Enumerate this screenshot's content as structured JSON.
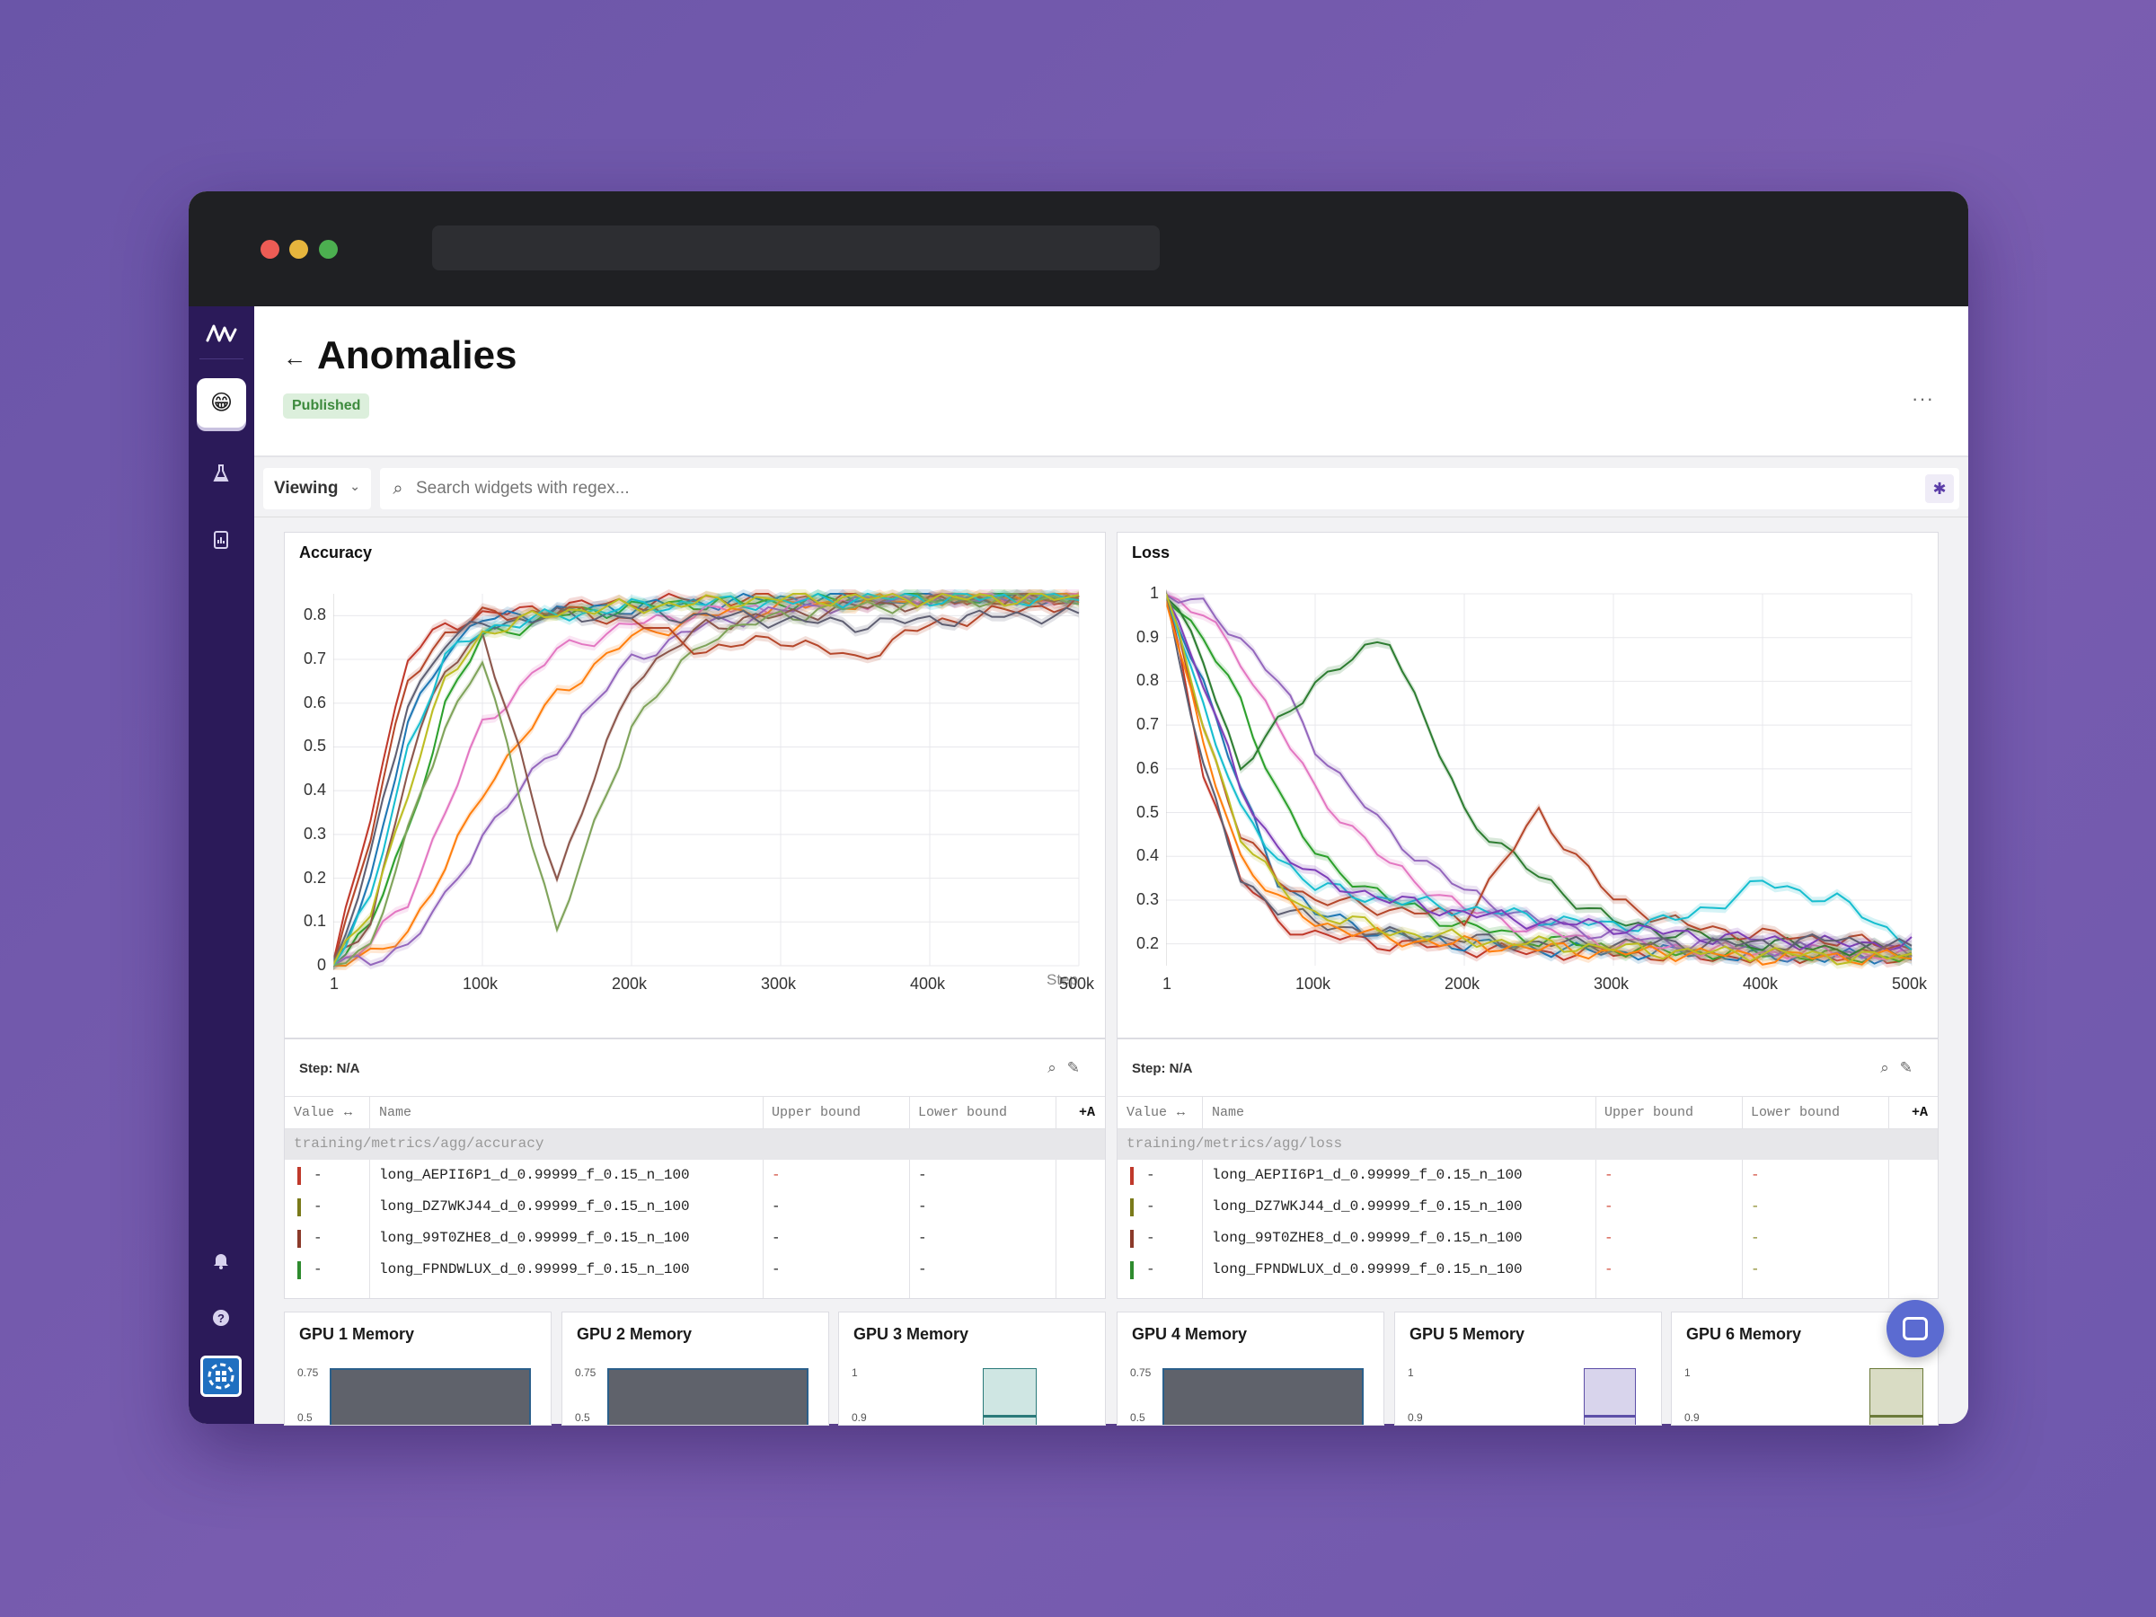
{
  "page": {
    "title": "Anomalies",
    "status_badge": "Published",
    "more_label": "···"
  },
  "toolbar": {
    "view_mode": "Viewing",
    "search_placeholder": "Search widgets with regex..."
  },
  "sidebar": {
    "avatar": "😁",
    "items": [
      {
        "icon": "flask-icon"
      },
      {
        "icon": "report-icon"
      },
      {
        "icon": "bell-icon"
      },
      {
        "icon": "help-icon"
      }
    ]
  },
  "charts": {
    "accuracy": {
      "title": "Accuracy",
      "x_ticks": [
        "1",
        "100k",
        "200k",
        "300k",
        "400k",
        "500k"
      ],
      "y_ticks": [
        "0",
        "0.1",
        "0.2",
        "0.3",
        "0.4",
        "0.5",
        "0.6",
        "0.7",
        "0.8"
      ],
      "x_label": "Step"
    },
    "loss": {
      "title": "Loss",
      "x_ticks": [
        "1",
        "100k",
        "200k",
        "300k",
        "400k",
        "500k"
      ],
      "y_ticks": [
        "0.2",
        "0.3",
        "0.4",
        "0.5",
        "0.6",
        "0.7",
        "0.8",
        "0.9",
        "1"
      ]
    }
  },
  "chart_data": [
    {
      "type": "line",
      "title": "Accuracy",
      "xlabel": "Step",
      "xlim": [
        1,
        500000
      ],
      "ylim": [
        0,
        0.85
      ],
      "x": [
        1,
        25000,
        50000,
        75000,
        100000,
        150000,
        200000,
        250000,
        300000,
        350000,
        400000,
        450000,
        500000
      ],
      "series": [
        {
          "values": [
            0,
            0.35,
            0.7,
            0.78,
            0.8,
            0.82,
            0.83,
            0.84,
            0.84,
            0.84,
            0.84,
            0.84,
            0.84
          ],
          "color": "#c0392b"
        },
        {
          "values": [
            0,
            0.2,
            0.55,
            0.72,
            0.79,
            0.81,
            0.82,
            0.83,
            0.84,
            0.84,
            0.84,
            0.84,
            0.84
          ],
          "color": "#1f77b4"
        },
        {
          "values": [
            0,
            0.1,
            0.3,
            0.6,
            0.75,
            0.8,
            0.82,
            0.83,
            0.83,
            0.84,
            0.84,
            0.84,
            0.84
          ],
          "color": "#2ca02c"
        },
        {
          "values": [
            0,
            0.05,
            0.15,
            0.35,
            0.55,
            0.72,
            0.78,
            0.81,
            0.82,
            0.83,
            0.84,
            0.84,
            0.84
          ],
          "color": "#e377c2"
        },
        {
          "values": [
            0,
            0.02,
            0.08,
            0.22,
            0.4,
            0.62,
            0.75,
            0.8,
            0.82,
            0.83,
            0.84,
            0.84,
            0.84
          ],
          "color": "#ff7f0e"
        },
        {
          "values": [
            0,
            0.01,
            0.05,
            0.15,
            0.3,
            0.5,
            0.7,
            0.78,
            0.81,
            0.83,
            0.84,
            0.84,
            0.84
          ],
          "color": "#9467bd"
        },
        {
          "values": [
            0,
            0.1,
            0.45,
            0.68,
            0.76,
            0.2,
            0.65,
            0.78,
            0.8,
            0.82,
            0.83,
            0.84,
            0.84
          ],
          "color": "#8c564b"
        },
        {
          "values": [
            0,
            0.05,
            0.3,
            0.55,
            0.7,
            0.08,
            0.55,
            0.75,
            0.8,
            0.82,
            0.83,
            0.84,
            0.84
          ],
          "color": "#7fa35a"
        },
        {
          "values": [
            0,
            0.3,
            0.65,
            0.76,
            0.8,
            0.81,
            0.79,
            0.72,
            0.75,
            0.7,
            0.78,
            0.81,
            0.83
          ],
          "color": "#b5472b"
        },
        {
          "values": [
            0,
            0.25,
            0.6,
            0.74,
            0.78,
            0.8,
            0.8,
            0.8,
            0.79,
            0.78,
            0.79,
            0.8,
            0.8
          ],
          "color": "#5f5f72"
        },
        {
          "values": [
            0,
            0.15,
            0.5,
            0.7,
            0.77,
            0.8,
            0.82,
            0.83,
            0.83,
            0.84,
            0.84,
            0.84,
            0.84
          ],
          "color": "#17becf"
        },
        {
          "values": [
            0,
            0.12,
            0.4,
            0.65,
            0.76,
            0.81,
            0.82,
            0.83,
            0.84,
            0.84,
            0.84,
            0.84,
            0.84
          ],
          "color": "#bcbd22"
        }
      ]
    },
    {
      "type": "line",
      "title": "Loss",
      "xlim": [
        1,
        500000
      ],
      "ylim": [
        0.15,
        1
      ],
      "x": [
        1,
        25000,
        50000,
        75000,
        100000,
        150000,
        200000,
        250000,
        300000,
        350000,
        400000,
        450000,
        500000
      ],
      "series": [
        {
          "values": [
            1,
            0.6,
            0.35,
            0.25,
            0.22,
            0.2,
            0.19,
            0.18,
            0.18,
            0.17,
            0.17,
            0.17,
            0.17
          ],
          "color": "#c0392b"
        },
        {
          "values": [
            1,
            0.8,
            0.55,
            0.35,
            0.27,
            0.22,
            0.2,
            0.19,
            0.18,
            0.18,
            0.17,
            0.17,
            0.17
          ],
          "color": "#1f77b4"
        },
        {
          "values": [
            1,
            0.9,
            0.75,
            0.55,
            0.4,
            0.3,
            0.24,
            0.21,
            0.19,
            0.18,
            0.18,
            0.17,
            0.17
          ],
          "color": "#2ca02c"
        },
        {
          "values": [
            1,
            0.95,
            0.85,
            0.7,
            0.55,
            0.38,
            0.28,
            0.23,
            0.2,
            0.19,
            0.18,
            0.18,
            0.17
          ],
          "color": "#e377c2"
        },
        {
          "values": [
            1,
            0.97,
            0.9,
            0.8,
            0.65,
            0.45,
            0.32,
            0.25,
            0.22,
            0.2,
            0.19,
            0.18,
            0.18
          ],
          "color": "#9467bd"
        },
        {
          "values": [
            1,
            0.85,
            0.6,
            0.7,
            0.8,
            0.9,
            0.5,
            0.35,
            0.25,
            0.22,
            0.2,
            0.19,
            0.18
          ],
          "color": "#2e7d32"
        },
        {
          "values": [
            1,
            0.7,
            0.45,
            0.35,
            0.3,
            0.28,
            0.26,
            0.5,
            0.3,
            0.24,
            0.22,
            0.21,
            0.19
          ],
          "color": "#b5472b"
        },
        {
          "values": [
            1,
            0.75,
            0.5,
            0.4,
            0.33,
            0.3,
            0.28,
            0.26,
            0.24,
            0.26,
            0.34,
            0.3,
            0.2
          ],
          "color": "#17becf"
        },
        {
          "values": [
            1,
            0.8,
            0.55,
            0.42,
            0.35,
            0.3,
            0.27,
            0.25,
            0.24,
            0.22,
            0.21,
            0.2,
            0.2
          ],
          "color": "#7e3fb8"
        },
        {
          "values": [
            1,
            0.6,
            0.35,
            0.28,
            0.25,
            0.22,
            0.21,
            0.2,
            0.2,
            0.2,
            0.2,
            0.21,
            0.19
          ],
          "color": "#5f5f72"
        },
        {
          "values": [
            1,
            0.65,
            0.4,
            0.3,
            0.25,
            0.21,
            0.2,
            0.19,
            0.18,
            0.18,
            0.17,
            0.17,
            0.17
          ],
          "color": "#ff7f0e"
        },
        {
          "values": [
            1,
            0.7,
            0.45,
            0.33,
            0.27,
            0.23,
            0.21,
            0.2,
            0.19,
            0.18,
            0.18,
            0.17,
            0.17
          ],
          "color": "#bcbd22"
        }
      ]
    }
  ],
  "legends": [
    {
      "step": "Step: N/A",
      "columns": [
        "Value",
        "Name",
        "Upper bound",
        "Lower bound"
      ],
      "add_label": "+A",
      "group": "training/metrics/agg/accuracy",
      "rows": [
        {
          "color": "#c0392b",
          "value": "-",
          "name": "long_AEPII6P1_d_0.99999_f_0.15_n_100",
          "upper": "-",
          "lower": "-"
        },
        {
          "color": "#7a7a1a",
          "value": "-",
          "name": "long_DZ7WKJ44_d_0.99999_f_0.15_n_100",
          "upper": "-",
          "lower": "-"
        },
        {
          "color": "#8b3a2a",
          "value": "-",
          "name": "long_99T0ZHE8_d_0.99999_f_0.15_n_100",
          "upper": "-",
          "lower": "-"
        },
        {
          "color": "#2e8b2e",
          "value": "-",
          "name": "long_FPNDWLUX_d_0.99999_f_0.15_n_100",
          "upper": "-",
          "lower": "-"
        }
      ]
    },
    {
      "step": "Step: N/A",
      "columns": [
        "Value",
        "Name",
        "Upper bound",
        "Lower bound"
      ],
      "add_label": "+A",
      "group": "training/metrics/agg/loss",
      "rows": [
        {
          "color": "#c0392b",
          "value": "-",
          "name": "long_AEPII6P1_d_0.99999_f_0.15_n_100",
          "upper": "-",
          "lower": "-"
        },
        {
          "color": "#7a7a1a",
          "value": "-",
          "name": "long_DZ7WKJ44_d_0.99999_f_0.15_n_100",
          "upper": "-",
          "lower": "-"
        },
        {
          "color": "#8b3a2a",
          "value": "-",
          "name": "long_99T0ZHE8_d_0.99999_f_0.15_n_100",
          "upper": "-",
          "lower": "-"
        },
        {
          "color": "#2e8b2e",
          "value": "-",
          "name": "long_FPNDWLUX_d_0.99999_f_0.15_n_100",
          "upper": "-",
          "lower": "-"
        }
      ]
    }
  ],
  "gpu_panels": [
    {
      "title": "GPU 1 Memory",
      "y_top": "0.75",
      "y_next": "0.5"
    },
    {
      "title": "GPU 2 Memory",
      "y_top": "0.75",
      "y_next": "0.5"
    },
    {
      "title": "GPU 3 Memory",
      "y_top": "1",
      "y_next": "0.9"
    },
    {
      "title": "GPU 4 Memory",
      "y_top": "0.75",
      "y_next": "0.5"
    },
    {
      "title": "GPU 5 Memory",
      "y_top": "1",
      "y_next": "0.9"
    },
    {
      "title": "GPU 6 Memory",
      "y_top": "1",
      "y_next": "0.9"
    }
  ],
  "colors": {
    "sidebar": "#2b1a59",
    "accent": "#5b3da8",
    "badge_bg": "#dcefdc",
    "badge_text": "#3d8a3d"
  }
}
